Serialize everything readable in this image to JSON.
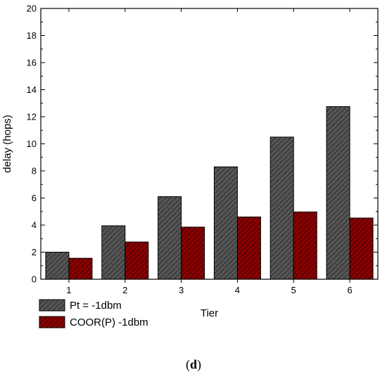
{
  "chart_data": {
    "type": "bar",
    "categories": [
      "1",
      "2",
      "3",
      "4",
      "5",
      "6"
    ],
    "series": [
      {
        "name": "Pt = -1dbm",
        "values": [
          2.0,
          3.95,
          6.1,
          8.3,
          10.5,
          12.75
        ],
        "color": "#555555",
        "hatch": "#2a2a2a"
      },
      {
        "name": "COOR(P) -1dbm",
        "values": [
          1.55,
          2.75,
          3.85,
          4.6,
          4.97,
          4.52
        ],
        "color": "#8b0000",
        "hatch": "#3a0000"
      }
    ],
    "xlabel": "Tier",
    "ylabel": "delay (hops)",
    "ylim": [
      0,
      20
    ],
    "yticks": [
      "0",
      "2",
      "4",
      "6",
      "8",
      "10",
      "12",
      "14",
      "16",
      "18",
      "20"
    ],
    "legend_position": "bottom-left, below plot"
  },
  "caption": {
    "open": "(",
    "letter": "d",
    "close": ")"
  }
}
